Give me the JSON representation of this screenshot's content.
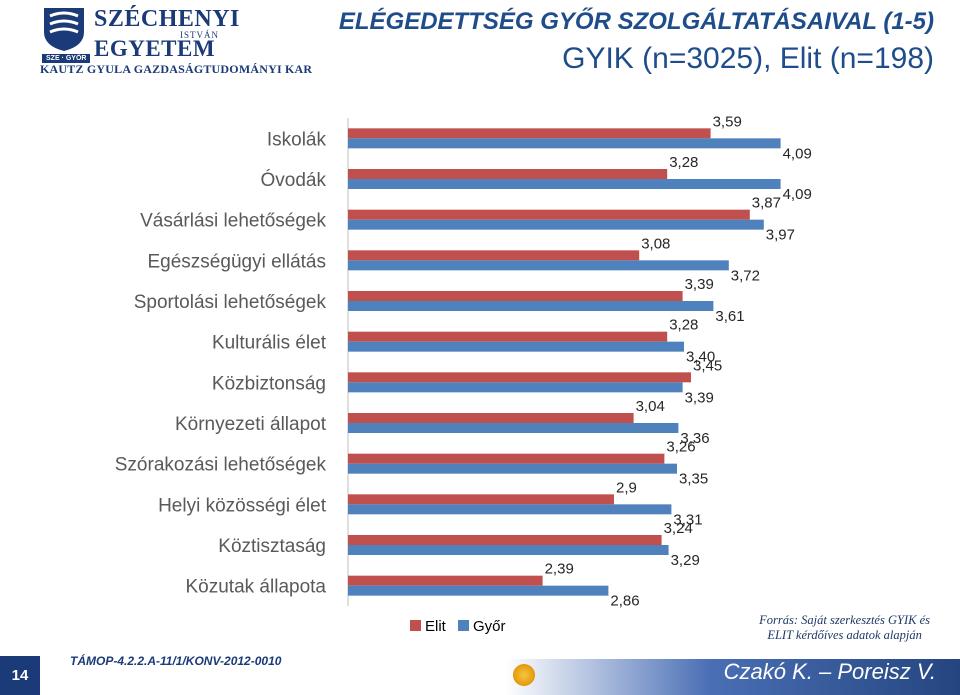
{
  "logo": {
    "name_line1": "SZÉCHENYI",
    "name_middle": "ISTVÁN",
    "name_line2": "EGYETEM",
    "badge": "SZE · GYŐR",
    "faculty": "KAUTZ GYULA GAZDASÁGTUDOMÁNYI KAR"
  },
  "title": {
    "line1": "ELÉGEDETTSÉG GYŐR SZOLGÁLTATÁSAIVAL (1-5)",
    "line2": "GYIK (n=3025), Elit (n=198)"
  },
  "colors": {
    "elit": "#c0504d",
    "gyor": "#4f81bd",
    "title": "#1f4d8c",
    "navy": "#1a3a78"
  },
  "chart_data": {
    "type": "bar",
    "orientation": "horizontal",
    "categories": [
      "Iskolák",
      "Óvodák",
      "Vásárlási lehetőségek",
      "Egészségügyi ellátás",
      "Sportolási lehetőségek",
      "Kulturális élet",
      "Közbiztonság",
      "Környezeti állapot",
      "Szórakozási lehetőségek",
      "Helyi közösségi élet",
      "Köztisztaság",
      "Közutak állapota"
    ],
    "series": [
      {
        "name": "Elit",
        "values": [
          3.59,
          3.28,
          3.87,
          3.08,
          3.39,
          3.28,
          3.45,
          3.04,
          3.26,
          2.9,
          3.24,
          2.39
        ]
      },
      {
        "name": "Győr",
        "values": [
          4.09,
          4.09,
          3.97,
          3.72,
          3.61,
          3.4,
          3.39,
          3.36,
          3.35,
          3.31,
          3.29,
          2.86
        ]
      }
    ],
    "labels": [
      [
        "3,59",
        "4,09"
      ],
      [
        "3,28",
        "4,09"
      ],
      [
        "3,87",
        "3,97"
      ],
      [
        "3,08",
        "3,72"
      ],
      [
        "3,39",
        "3,61"
      ],
      [
        "3,28",
        "3,40"
      ],
      [
        "3,45",
        "3,39"
      ],
      [
        "3,04",
        "3,36"
      ],
      [
        "3,26",
        "3,35"
      ],
      [
        "2,9",
        "3,31"
      ],
      [
        "3,24",
        "3,29"
      ],
      [
        "2,39",
        "2,86"
      ]
    ],
    "xlim": [
      1,
      5
    ],
    "axis_visible": false,
    "grid": false,
    "legend_position": "bottom"
  },
  "legend": {
    "elit": "Elit",
    "gyor": "Győr"
  },
  "source": {
    "line1": "Forrás: Saját szerkesztés GYIK és",
    "line2": "ELIT kérdőíves adatok alapján"
  },
  "footer": {
    "page_number": "14",
    "project_code": "TÁMOP-4.2.2.A-11/1/KONV-2012-0010",
    "authors": "Czakó K. – Poreisz V."
  }
}
